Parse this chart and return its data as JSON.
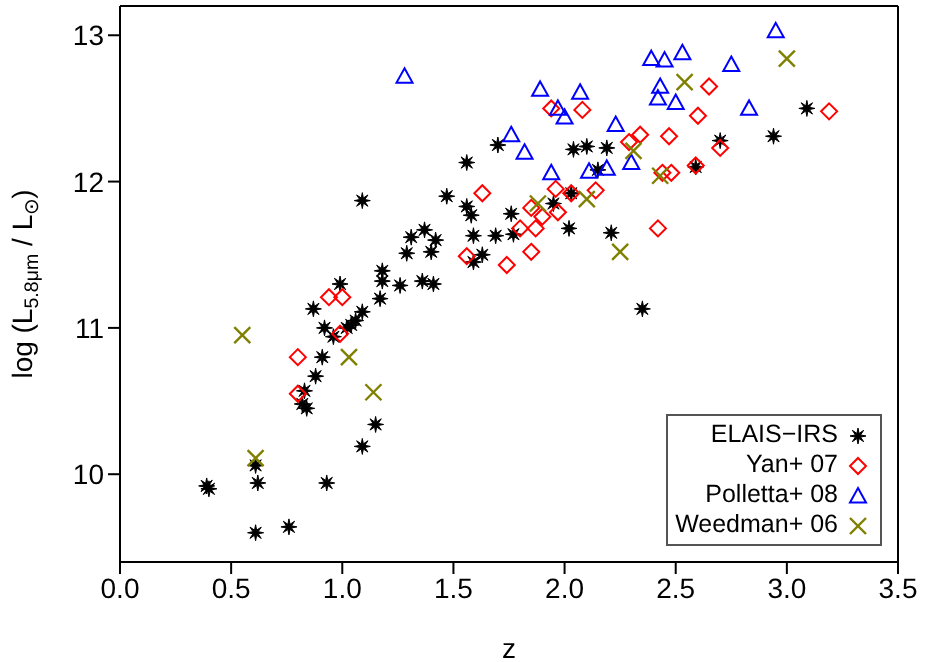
{
  "chart_data": {
    "type": "scatter",
    "xlabel": "z",
    "ylabel": "log (L$_{5.8μm}$ / L$_{⊙}$)",
    "xlim": [
      0,
      3.5
    ],
    "ylim": [
      9.4,
      13.2
    ],
    "xticks": [
      {
        "value": 0,
        "label": "0.0"
      },
      {
        "value": 0.5,
        "label": "0.5"
      },
      {
        "value": 1,
        "label": "1.0"
      },
      {
        "value": 1.5,
        "label": "1.5"
      },
      {
        "value": 2,
        "label": "2.0"
      },
      {
        "value": 2.5,
        "label": "2.5"
      },
      {
        "value": 3,
        "label": "3.0"
      },
      {
        "value": 3.5,
        "label": "3.5"
      }
    ],
    "yticks": [
      10,
      11,
      12,
      13
    ],
    "legend": "bottom right",
    "series": [
      {
        "name": "ELAIS−IRS",
        "color": "#000000",
        "marker": "star",
        "x": [
          1.7,
          1.56,
          1.09,
          1.47,
          1.56,
          1.58,
          1.59,
          1.69,
          1.37,
          1.31,
          1.42,
          1.4,
          1.29,
          1.59,
          1.63,
          1.18,
          1.18,
          1.26,
          1.36,
          1.41,
          0.99,
          1.17,
          1.09,
          0.87,
          1.06,
          3.09,
          2.94,
          2.7,
          2.04,
          2.1,
          2.19,
          2.15,
          2.59,
          2.03,
          1.95,
          1.76,
          1.77,
          2.02,
          2.21,
          2.35,
          0.92,
          1.02,
          1.04,
          0.96,
          0.91,
          0.88,
          0.83,
          0.82,
          0.84,
          1.15,
          1.09,
          0.61,
          0.39,
          0.4,
          0.62,
          0.93,
          0.61,
          0.76
        ],
        "values": [
          12.25,
          12.13,
          11.87,
          11.9,
          11.83,
          11.77,
          11.63,
          11.63,
          11.67,
          11.62,
          11.6,
          11.52,
          11.51,
          11.45,
          11.5,
          11.39,
          11.32,
          11.29,
          11.32,
          11.3,
          11.3,
          11.2,
          11.11,
          11.13,
          11.05,
          12.5,
          12.31,
          12.28,
          12.22,
          12.24,
          12.23,
          12.08,
          12.1,
          11.92,
          11.85,
          11.78,
          11.64,
          11.68,
          11.65,
          11.13,
          11.0,
          11.0,
          11.02,
          10.94,
          10.8,
          10.67,
          10.57,
          10.48,
          10.45,
          10.34,
          10.19,
          10.06,
          9.92,
          9.9,
          9.94,
          9.94,
          9.6,
          9.64
        ]
      },
      {
        "name": "Yan+ 07",
        "color": "#ff0000",
        "marker": "diamond",
        "x": [
          0.94,
          1.0,
          1.63,
          1.56,
          2.65,
          1.94,
          2.08,
          2.6,
          3.19,
          2.34,
          2.29,
          2.47,
          2.7,
          2.59,
          2.44,
          2.48,
          1.96,
          2.14,
          2.03,
          1.85,
          1.97,
          1.9,
          1.8,
          1.87,
          2.42,
          1.85,
          1.74,
          0.8,
          0.8,
          0.99
        ],
        "values": [
          11.21,
          11.21,
          11.92,
          11.49,
          12.65,
          12.5,
          12.49,
          12.45,
          12.48,
          12.32,
          12.27,
          12.31,
          12.23,
          12.11,
          12.06,
          12.06,
          11.95,
          11.94,
          11.92,
          11.82,
          11.79,
          11.76,
          11.68,
          11.68,
          11.68,
          11.52,
          11.43,
          10.8,
          10.55,
          10.96
        ]
      },
      {
        "name": "Polletta+ 08",
        "color": "#0000ff",
        "marker": "triangle",
        "x": [
          1.28,
          2.95,
          2.39,
          2.45,
          2.53,
          2.75,
          1.89,
          2.07,
          2.43,
          2.42,
          2.5,
          2.83,
          1.97,
          2.0,
          2.23,
          1.76,
          1.82,
          1.94,
          2.11,
          2.19,
          2.3
        ],
        "values": [
          12.72,
          13.03,
          12.84,
          12.83,
          12.88,
          12.8,
          12.63,
          12.61,
          12.65,
          12.57,
          12.54,
          12.5,
          12.5,
          12.44,
          12.39,
          12.32,
          12.2,
          12.06,
          12.07,
          12.09,
          12.13
        ]
      },
      {
        "name": "Weedman+ 06",
        "color": "#808000",
        "marker": "cross",
        "x": [
          3.0,
          2.54,
          2.31,
          2.43,
          1.88,
          2.1,
          2.25,
          0.55,
          1.03,
          1.14,
          0.61
        ],
        "values": [
          12.84,
          12.68,
          12.21,
          12.04,
          11.85,
          11.88,
          11.52,
          10.95,
          10.8,
          10.56,
          10.11
        ]
      }
    ]
  }
}
